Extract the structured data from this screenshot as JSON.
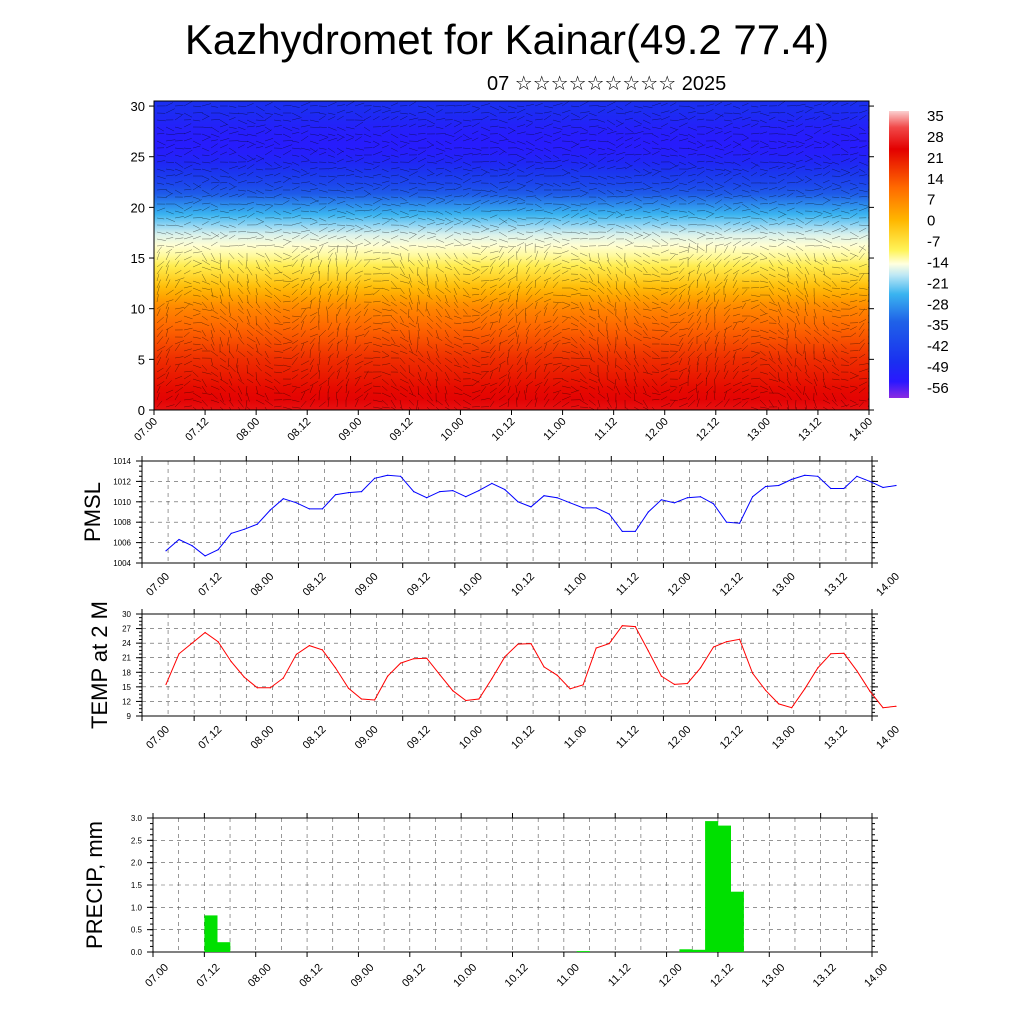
{
  "header": {
    "title": "Kazhydromet for Kainar(49.2 77.4)",
    "subtitle": "07 ☆☆☆☆☆☆☆☆☆ 2025"
  },
  "time_ticks": [
    "07.00",
    "07.12",
    "08.00",
    "08.12",
    "09.00",
    "09.12",
    "10.00",
    "10.12",
    "11.00",
    "11.12",
    "12.00",
    "12.12",
    "13.00",
    "13.12",
    "14.00"
  ],
  "colors": {
    "pmsl_line": "#0000ff",
    "temp_line": "#ff0000",
    "precip_bar": "#00e000"
  },
  "chart_data": [
    {
      "type": "heatmap",
      "title": "",
      "xlabel": "",
      "ylabel": "",
      "x": [
        "07.00",
        "07.12",
        "08.00",
        "08.12",
        "09.00",
        "09.12",
        "10.00",
        "10.12",
        "11.00",
        "11.12",
        "12.00",
        "12.12",
        "13.00",
        "13.12",
        "14.00"
      ],
      "yticks": [
        0,
        5,
        10,
        15,
        20,
        25,
        30
      ],
      "ylim": [
        0,
        30.5
      ],
      "colorbar": {
        "labels": [
          "35",
          "28",
          "21",
          "14",
          "7",
          "0",
          "-7",
          "-14",
          "-21",
          "-28",
          "-35",
          "-42",
          "-49",
          "-56"
        ],
        "range": [
          -63,
          42
        ],
        "stops": [
          {
            "v": 42,
            "c": "#fbd0d0"
          },
          {
            "v": 36,
            "c": "#f14848"
          },
          {
            "v": 28,
            "c": "#e30000"
          },
          {
            "v": 14,
            "c": "#ff6a00"
          },
          {
            "v": 2,
            "c": "#ffb700"
          },
          {
            "v": -9,
            "c": "#fff45a"
          },
          {
            "v": -14,
            "c": "#ffffe0"
          },
          {
            "v": -18,
            "c": "#bfe8f5"
          },
          {
            "v": -25,
            "c": "#3ab4f0"
          },
          {
            "v": -35,
            "c": "#1f62e8"
          },
          {
            "v": -50,
            "c": "#1a2ff0"
          },
          {
            "v": -57,
            "c": "#2a18ff"
          },
          {
            "v": -63,
            "c": "#8a2be2"
          }
        ]
      },
      "temp_profile": [
        [
          0,
          30
        ],
        [
          5,
          22
        ],
        [
          10,
          10
        ],
        [
          15,
          -11
        ],
        [
          17,
          -15
        ],
        [
          20,
          -28
        ],
        [
          22,
          -42
        ],
        [
          25,
          -55
        ],
        [
          27,
          -56
        ],
        [
          30,
          -50
        ]
      ],
      "grid": false,
      "note_overlay": "wind barbs"
    },
    {
      "type": "line",
      "title": "",
      "xlabel": "",
      "ylabel": "PMSL",
      "ylim": [
        1004,
        1014
      ],
      "yticks": [
        1004,
        1006,
        1008,
        1010,
        1012,
        1014
      ],
      "x": [
        "07.00",
        "07.03",
        "07.06",
        "07.09",
        "07.12",
        "07.15",
        "07.18",
        "07.21",
        "08.00",
        "08.03",
        "08.06",
        "08.09",
        "08.12",
        "08.15",
        "08.18",
        "08.21",
        "09.00",
        "09.03",
        "09.06",
        "09.09",
        "09.12",
        "09.15",
        "09.18",
        "09.21",
        "10.00",
        "10.03",
        "10.06",
        "10.09",
        "10.12",
        "10.15",
        "10.18",
        "10.21",
        "11.00",
        "11.03",
        "11.06",
        "11.09",
        "11.12",
        "11.15",
        "11.18",
        "11.21",
        "12.00",
        "12.03",
        "12.06",
        "12.09",
        "12.12",
        "12.15",
        "12.18",
        "12.21",
        "13.00",
        "13.03",
        "13.06",
        "13.09",
        "13.12",
        "13.15",
        "13.18",
        "13.21",
        "14.00"
      ],
      "series": [
        {
          "values": [
            1005.2,
            1006.3,
            1005.7,
            1004.7,
            1005.3,
            1006.9,
            1007.3,
            1007.8,
            1009.2,
            1010.3,
            1009.9,
            1009.3,
            1009.3,
            1010.7,
            1010.9,
            1011.0,
            1012.3,
            1012.6,
            1012.5,
            1011.0,
            1010.4,
            1011.0,
            1011.1,
            1010.5,
            1011.1,
            1011.8,
            1011.2,
            1010.0,
            1009.5,
            1010.6,
            1010.4,
            1009.9,
            1009.4,
            1009.4,
            1008.8,
            1007.1,
            1007.1,
            1009.0,
            1010.2,
            1009.9,
            1010.4,
            1010.5,
            1009.8,
            1008.0,
            1007.9,
            1010.5,
            1011.5,
            1011.6,
            1012.2,
            1012.6,
            1012.5,
            1011.3,
            1011.3,
            1012.5,
            1012.0,
            1011.4,
            1011.6
          ]
        }
      ],
      "grid": true
    },
    {
      "type": "line",
      "title": "",
      "xlabel": "",
      "ylabel": "TEMP at 2 M",
      "ylim": [
        9,
        30
      ],
      "yticks": [
        9,
        12,
        15,
        18,
        21,
        24,
        27,
        30
      ],
      "x": [
        "07.00",
        "07.03",
        "07.06",
        "07.09",
        "07.12",
        "07.15",
        "07.18",
        "07.21",
        "08.00",
        "08.03",
        "08.06",
        "08.09",
        "08.12",
        "08.15",
        "08.18",
        "08.21",
        "09.00",
        "09.03",
        "09.06",
        "09.09",
        "09.12",
        "09.15",
        "09.18",
        "09.21",
        "10.00",
        "10.03",
        "10.06",
        "10.09",
        "10.12",
        "10.15",
        "10.18",
        "10.21",
        "11.00",
        "11.03",
        "11.06",
        "11.09",
        "11.12",
        "11.15",
        "11.18",
        "11.21",
        "12.00",
        "12.03",
        "12.06",
        "12.09",
        "12.12",
        "12.15",
        "12.18",
        "12.21",
        "13.00",
        "13.03",
        "13.06",
        "13.09",
        "13.12",
        "13.15",
        "13.18",
        "13.21",
        "14.00"
      ],
      "series": [
        {
          "values": [
            15.5,
            21.8,
            24.0,
            26.2,
            24.3,
            20.2,
            17.0,
            14.8,
            14.8,
            16.8,
            21.7,
            23.5,
            22.6,
            18.9,
            14.7,
            12.5,
            12.3,
            17.2,
            19.9,
            20.8,
            20.9,
            17.5,
            14.2,
            12.2,
            12.5,
            16.7,
            21.2,
            23.8,
            23.9,
            19.1,
            17.4,
            14.6,
            15.4,
            23.0,
            23.9,
            27.6,
            27.4,
            22.4,
            17.2,
            15.5,
            15.7,
            18.9,
            23.2,
            24.3,
            24.8,
            17.8,
            14.3,
            11.5,
            10.7,
            14.6,
            18.9,
            21.8,
            21.9,
            18.3,
            14.1,
            10.7,
            11.0
          ]
        }
      ],
      "grid": true
    },
    {
      "type": "bar",
      "title": "",
      "xlabel": "",
      "ylabel": "PRECIP, mm",
      "ylim": [
        0,
        3.0
      ],
      "yticks": [
        "0.0",
        "0.5",
        "1.0",
        "1.5",
        "2.0",
        "2.5",
        "3.0"
      ],
      "x": [
        "07.00",
        "07.03",
        "07.06",
        "07.09",
        "07.12",
        "07.15",
        "07.18",
        "07.21",
        "08.00",
        "08.03",
        "08.06",
        "08.09",
        "08.12",
        "08.15",
        "08.18",
        "08.21",
        "09.00",
        "09.03",
        "09.06",
        "09.09",
        "09.12",
        "09.15",
        "09.18",
        "09.21",
        "10.00",
        "10.03",
        "10.06",
        "10.09",
        "10.12",
        "10.15",
        "10.18",
        "10.21",
        "11.00",
        "11.03",
        "11.06",
        "11.09",
        "11.12",
        "11.15",
        "11.18",
        "11.21",
        "12.00",
        "12.03",
        "12.06",
        "12.09",
        "12.12",
        "12.15",
        "12.18",
        "12.21",
        "13.00",
        "13.03",
        "13.06",
        "13.09",
        "13.12",
        "13.15",
        "13.18",
        "13.21"
      ],
      "series": [
        {
          "values": [
            0,
            0,
            0,
            0,
            0.82,
            0.22,
            0,
            0,
            0,
            0,
            0,
            0,
            0,
            0,
            0,
            0,
            0,
            0,
            0,
            0,
            0,
            0,
            0,
            0,
            0,
            0,
            0,
            0,
            0,
            0,
            0,
            0,
            0,
            0.02,
            0,
            0,
            0,
            0,
            0,
            0,
            0,
            0.06,
            0.05,
            2.93,
            2.83,
            1.35,
            0,
            0,
            0,
            0,
            0,
            0,
            0,
            0,
            0,
            0
          ]
        }
      ],
      "grid": true
    }
  ]
}
